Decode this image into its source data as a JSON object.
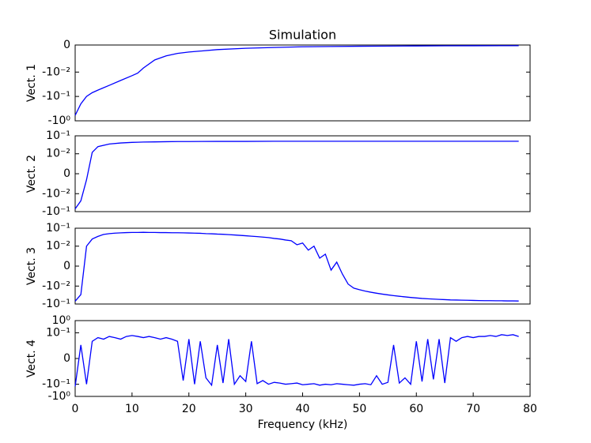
{
  "chart_data": [
    {
      "type": "line",
      "title": "Simulation",
      "ylabel": "Vect. 1",
      "yscale": "symlog",
      "linthresh": 0.01,
      "xlim": [
        0,
        80
      ],
      "ylim": [
        -1,
        0
      ],
      "yticks": [
        0,
        {
          "value": -0.01,
          "label": "-10⁻²"
        },
        {
          "value": -0.1,
          "label": "-10⁻¹"
        },
        {
          "value": -1,
          "label": "-10⁰"
        }
      ],
      "x": [
        0,
        1,
        2,
        3,
        4,
        6,
        8,
        10,
        11,
        12,
        14,
        16,
        18,
        20,
        25,
        30,
        35,
        40,
        45,
        50,
        55,
        60,
        65,
        70,
        75,
        78
      ],
      "series": [
        {
          "color": "#0000ff",
          "values": [
            -0.6,
            -0.2,
            -0.1,
            -0.07,
            -0.055,
            -0.035,
            -0.022,
            -0.014,
            -0.011,
            -0.0085,
            -0.0055,
            -0.004,
            -0.0031,
            -0.0026,
            -0.0017,
            -0.0012,
            -0.0009,
            -0.00065,
            -0.00055,
            -0.00045,
            -0.0004,
            -0.00035,
            -0.0003,
            -0.00028,
            -0.00026,
            -0.00025
          ]
        }
      ]
    },
    {
      "type": "line",
      "ylabel": "Vect. 2",
      "yscale": "symlog",
      "linthresh": 0.01,
      "xlim": [
        0,
        80
      ],
      "ylim": [
        -0.1,
        0.1
      ],
      "yticks": [
        {
          "value": 0.1,
          "label": "10⁻¹"
        },
        {
          "value": 0.01,
          "label": "10⁻²"
        },
        0,
        {
          "value": -0.01,
          "label": "-10⁻²"
        },
        {
          "value": -0.1,
          "label": "-10⁻¹"
        }
      ],
      "x": [
        0,
        1,
        2,
        3,
        4,
        6,
        8,
        10,
        11,
        12,
        14,
        16,
        18,
        20,
        25,
        30,
        35,
        40,
        45,
        50,
        55,
        60,
        65,
        70,
        75,
        78
      ],
      "series": [
        {
          "color": "#0000ff",
          "values": [
            -0.07,
            -0.025,
            -0.003,
            0.012,
            0.025,
            0.035,
            0.04,
            0.043,
            0.044,
            0.045,
            0.046,
            0.047,
            0.048,
            0.048,
            0.049,
            0.049,
            0.05,
            0.05,
            0.05,
            0.05,
            0.05,
            0.05,
            0.05,
            0.05,
            0.05,
            0.05
          ]
        }
      ]
    },
    {
      "type": "line",
      "ylabel": "Vect. 3",
      "yscale": "symlog",
      "linthresh": 0.01,
      "xlim": [
        0,
        80
      ],
      "ylim": [
        -0.1,
        0.1
      ],
      "yticks": [
        {
          "value": 0.1,
          "label": "10⁻¹"
        },
        {
          "value": 0.01,
          "label": "10⁻²"
        },
        0,
        {
          "value": -0.01,
          "label": "-10⁻²"
        },
        {
          "value": -0.1,
          "label": "-10⁻¹"
        }
      ],
      "x": [
        0,
        1,
        2,
        3,
        4,
        5,
        6,
        7,
        8,
        9,
        10,
        11,
        12,
        13,
        14,
        15,
        16,
        17,
        18,
        19,
        20,
        21,
        22,
        23,
        24,
        25,
        26,
        27,
        28,
        29,
        30,
        31,
        32,
        33,
        34,
        35,
        36,
        37,
        38,
        39,
        40,
        41,
        42,
        43,
        44,
        45,
        46,
        47,
        48,
        49,
        50,
        51,
        52,
        53,
        54,
        55,
        56,
        57,
        58,
        59,
        60,
        61,
        62,
        63,
        64,
        65,
        66,
        67,
        68,
        69,
        70,
        71,
        72,
        73,
        74,
        75,
        76,
        77,
        78
      ],
      "series": [
        {
          "color": "#0000ff",
          "values": [
            -0.07,
            -0.03,
            0.01,
            0.025,
            0.035,
            0.045,
            0.05,
            0.053,
            0.055,
            0.057,
            0.058,
            0.058,
            0.059,
            0.058,
            0.058,
            0.057,
            0.057,
            0.056,
            0.056,
            0.055,
            0.054,
            0.053,
            0.052,
            0.05,
            0.049,
            0.047,
            0.046,
            0.044,
            0.042,
            0.04,
            0.038,
            0.036,
            0.034,
            0.032,
            0.03,
            0.027,
            0.025,
            0.022,
            0.02,
            0.012,
            0.015,
            0.008,
            0.01,
            0.004,
            0.006,
            -0.002,
            0.002,
            -0.004,
            -0.009,
            -0.013,
            -0.016,
            -0.019,
            -0.022,
            -0.025,
            -0.028,
            -0.031,
            -0.034,
            -0.037,
            -0.04,
            -0.043,
            -0.046,
            -0.049,
            -0.051,
            -0.053,
            -0.055,
            -0.057,
            -0.059,
            -0.06,
            -0.061,
            -0.062,
            -0.063,
            -0.064,
            -0.065,
            -0.065,
            -0.066,
            -0.066,
            -0.067,
            -0.067,
            -0.068
          ]
        }
      ]
    },
    {
      "type": "line",
      "ylabel": "Vect. 4",
      "xlabel": "Frequency (kHz)",
      "yscale": "symlog",
      "linthresh": 0.01,
      "xlim": [
        0,
        80
      ],
      "ylim": [
        -1,
        1
      ],
      "xticks": [
        0,
        10,
        20,
        30,
        40,
        50,
        60,
        70,
        80
      ],
      "yticks": [
        {
          "value": 1,
          "label": "10⁰"
        },
        {
          "value": 0.1,
          "label": "10⁻¹"
        },
        0,
        {
          "value": -0.1,
          "label": "-10⁻¹"
        },
        {
          "value": -1,
          "label": "-10⁰"
        }
      ],
      "x": [
        0,
        1,
        2,
        3,
        4,
        5,
        6,
        7,
        8,
        9,
        10,
        11,
        12,
        13,
        14,
        15,
        16,
        17,
        18,
        19,
        20,
        21,
        22,
        23,
        24,
        25,
        26,
        27,
        28,
        29,
        30,
        31,
        32,
        33,
        34,
        35,
        36,
        37,
        38,
        39,
        40,
        41,
        42,
        43,
        44,
        45,
        46,
        47,
        48,
        49,
        50,
        51,
        52,
        53,
        54,
        55,
        56,
        57,
        58,
        59,
        60,
        61,
        62,
        63,
        64,
        65,
        66,
        67,
        68,
        69,
        70,
        71,
        72,
        73,
        74,
        75,
        76,
        77,
        78
      ],
      "series": [
        {
          "color": "#0000ff",
          "values": [
            -0.15,
            0.01,
            -0.1,
            0.02,
            0.04,
            0.03,
            0.05,
            0.04,
            0.03,
            0.05,
            0.06,
            0.05,
            0.04,
            0.05,
            0.04,
            0.03,
            0.04,
            0.03,
            0.02,
            -0.05,
            0.03,
            -0.1,
            0.02,
            -0.03,
            -0.12,
            0.01,
            -0.08,
            0.03,
            -0.1,
            -0.02,
            -0.06,
            0.02,
            -0.09,
            -0.05,
            -0.1,
            -0.07,
            -0.08,
            -0.1,
            -0.09,
            -0.08,
            -0.11,
            -0.1,
            -0.09,
            -0.12,
            -0.1,
            -0.11,
            -0.09,
            -0.1,
            -0.11,
            -0.12,
            -0.1,
            -0.09,
            -0.11,
            -0.02,
            -0.1,
            -0.07,
            0.01,
            -0.08,
            -0.03,
            -0.1,
            0.02,
            -0.06,
            0.03,
            -0.04,
            0.03,
            -0.08,
            0.04,
            0.02,
            0.04,
            0.05,
            0.04,
            0.05,
            0.05,
            0.06,
            0.05,
            0.07,
            0.06,
            0.07,
            0.05
          ]
        }
      ]
    }
  ]
}
